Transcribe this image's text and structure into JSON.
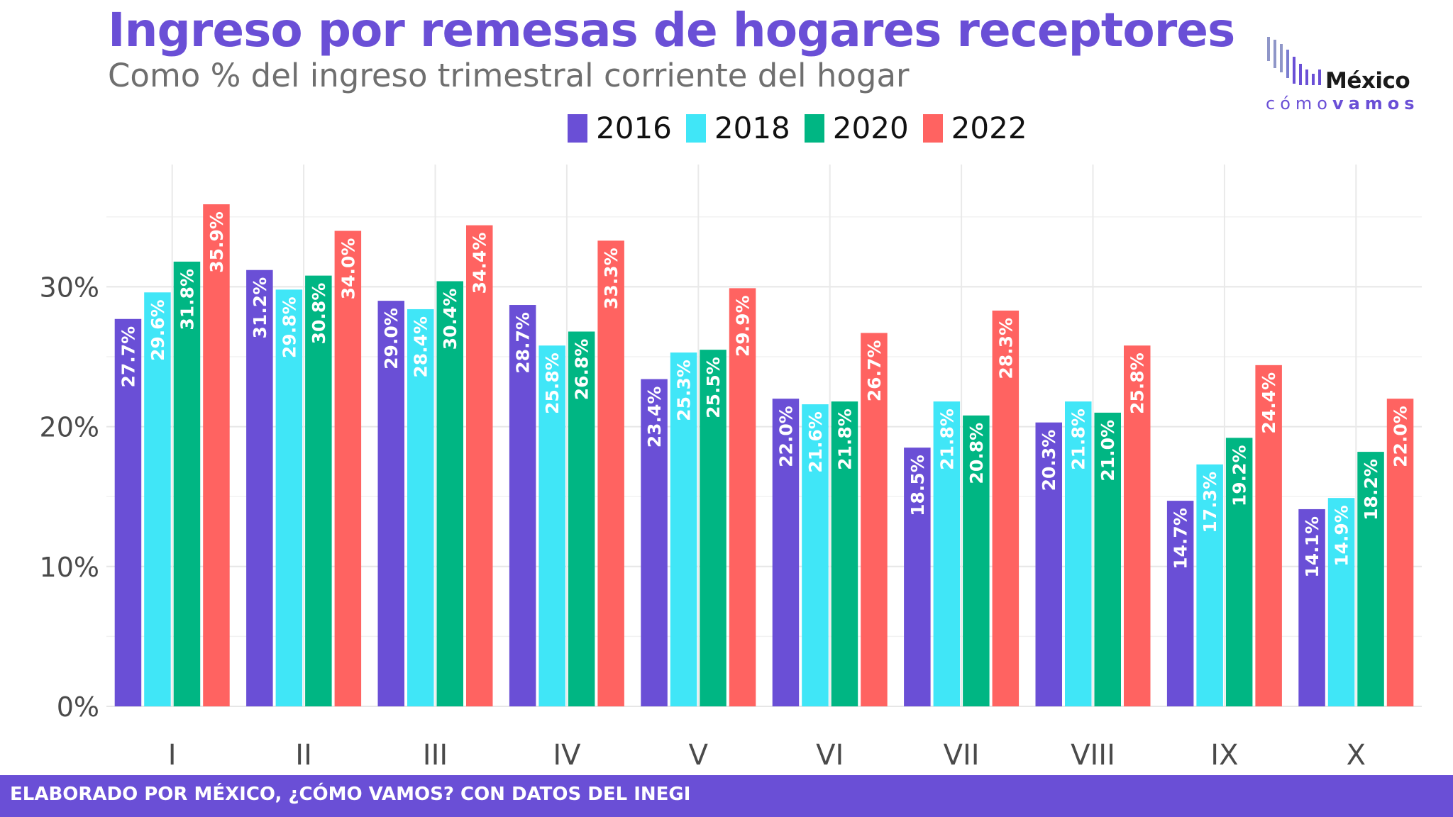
{
  "header": {
    "title": "Ingreso por remesas de hogares receptores",
    "subtitle": "Como % del ingreso trimestral corriente del hogar"
  },
  "logo": {
    "name": "México",
    "tag_part1": "cómo",
    "tag_part2": "vamos",
    "icon": "bar-signal-icon",
    "colors": [
      "#6a4fd6",
      "#8f96c8"
    ]
  },
  "footer": {
    "text": "ELABORADO POR MÉXICO, ¿CÓMO VAMOS? CON DATOS DEL INEGI"
  },
  "chart_data": {
    "type": "bar",
    "title": "Ingreso por remesas de hogares receptores",
    "subtitle": "Como % del ingreso trimestral corriente del hogar",
    "xlabel": "",
    "ylabel": "",
    "categories": [
      "I",
      "II",
      "III",
      "IV",
      "V",
      "VI",
      "VII",
      "VIII",
      "IX",
      "X"
    ],
    "ylim": [
      0,
      40
    ],
    "yticks": [
      0,
      10,
      20,
      30
    ],
    "ytick_labels": [
      "0%",
      "10%",
      "20%",
      "30%"
    ],
    "grid": true,
    "legend_position": "top",
    "series": [
      {
        "name": "2016",
        "color": "#6a4fd6",
        "values": [
          27.7,
          31.2,
          29.0,
          28.7,
          23.4,
          22.0,
          18.5,
          20.3,
          14.7,
          14.1
        ],
        "labels": [
          "27.7%",
          "31.2%",
          "29.0%",
          "28.7%",
          "23.4%",
          "22.0%",
          "18.5%",
          "20.3%",
          "14.7%",
          "14.1%"
        ]
      },
      {
        "name": "2018",
        "color": "#40e6f7",
        "values": [
          29.6,
          29.8,
          28.4,
          25.8,
          25.3,
          21.6,
          21.8,
          21.8,
          17.3,
          14.9
        ],
        "labels": [
          "29.6%",
          "29.8%",
          "28.4%",
          "25.8%",
          "25.3%",
          "21.6%",
          "21.8%",
          "21.8%",
          "17.3%",
          "14.9%"
        ]
      },
      {
        "name": "2020",
        "color": "#00b683",
        "values": [
          31.8,
          30.8,
          30.4,
          26.8,
          25.5,
          21.8,
          20.8,
          21.0,
          19.2,
          18.2
        ],
        "labels": [
          "31.8%",
          "30.8%",
          "30.4%",
          "26.8%",
          "25.5%",
          "21.8%",
          "20.8%",
          "21.0%",
          "19.2%",
          "18.2%"
        ]
      },
      {
        "name": "2022",
        "color": "#ff6361",
        "values": [
          35.9,
          34.0,
          34.4,
          33.3,
          29.9,
          26.7,
          28.3,
          25.8,
          24.4,
          22.0
        ],
        "labels": [
          "35.9%",
          "34.0%",
          "34.4%",
          "33.3%",
          "29.9%",
          "26.7%",
          "28.3%",
          "25.8%",
          "24.4%",
          "22.0%"
        ]
      }
    ]
  }
}
